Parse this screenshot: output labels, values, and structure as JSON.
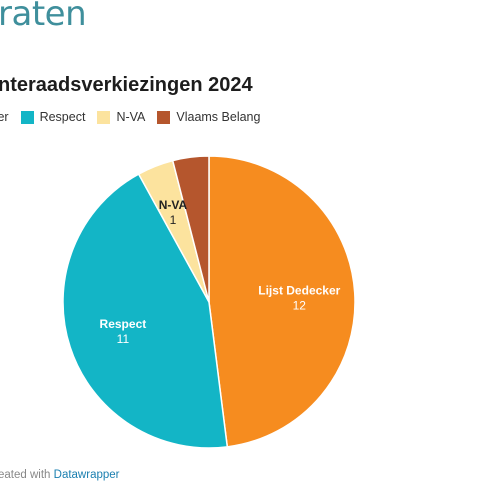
{
  "header": {
    "logo_text": "raten"
  },
  "chart_data": {
    "type": "pie",
    "title": "nteraadsverkiezingen 2024",
    "legend_position": "top",
    "series": [
      {
        "name": "Lijst Dedecker",
        "legend_label": "ecker",
        "value": 12,
        "color": "#f68c1f",
        "show_label": true,
        "label_color": "#ffffff"
      },
      {
        "name": "Respect",
        "legend_label": "Respect",
        "value": 11,
        "color": "#13b5c6",
        "show_label": true,
        "label_color": "#ffffff"
      },
      {
        "name": "N-VA",
        "legend_label": "N-VA",
        "value": 1,
        "color": "#fce39e",
        "show_label": true,
        "label_color": "#222222"
      },
      {
        "name": "Vlaams Belang",
        "legend_label": "Vlaams Belang",
        "value": 1,
        "color": "#b5562d",
        "show_label": false,
        "label_color": "#ffffff"
      }
    ]
  },
  "footer": {
    "prefix": "eated with",
    "link": "Datawrapper"
  }
}
